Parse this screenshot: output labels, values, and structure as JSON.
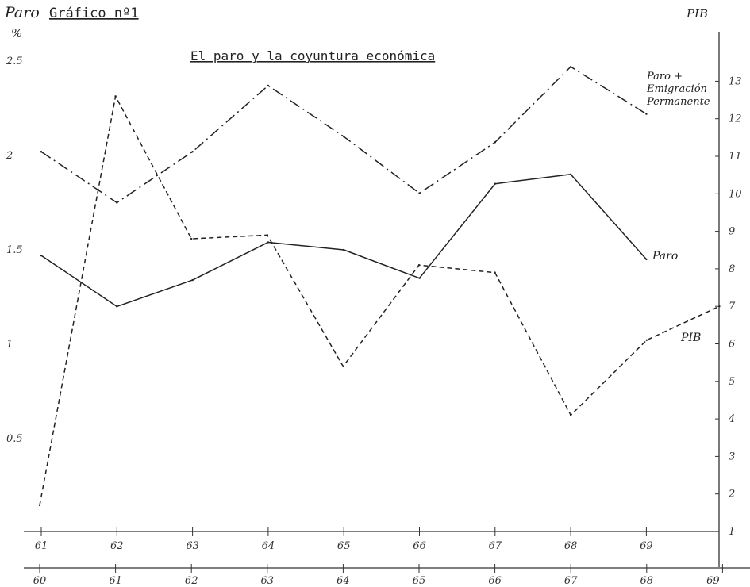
{
  "chart_data": {
    "type": "line",
    "title": "El paro y la coyuntura económica",
    "figure_label": "Gráfico nº1",
    "ylabel_left": "Paro",
    "ylabel_left_unit": "%",
    "ylabel_right": "PIB",
    "x_top_labels": [
      "61",
      "62",
      "63",
      "64",
      "65",
      "66",
      "67",
      "68",
      "69"
    ],
    "x_bottom_labels": [
      "60",
      "61",
      "62",
      "63",
      "64",
      "65",
      "66",
      "67",
      "68",
      "69"
    ],
    "left_ticks": [
      "2.5",
      "2",
      "1.5",
      "1",
      "0.5"
    ],
    "right_ticks": [
      "13",
      "12",
      "11",
      "10",
      "9",
      "8",
      "7",
      "6",
      "5",
      "4",
      "3",
      "2",
      "1"
    ],
    "ylim_left": [
      0,
      2.6
    ],
    "ylim_right": [
      1,
      13.8
    ],
    "series": [
      {
        "name": "Paro",
        "axis": "left",
        "style": "solid",
        "x": [
          "61",
          "62",
          "63",
          "64",
          "65",
          "66",
          "67",
          "68",
          "69"
        ],
        "values": [
          1.47,
          1.2,
          1.34,
          1.54,
          1.5,
          1.35,
          1.85,
          1.9,
          1.45
        ]
      },
      {
        "name": "Paro + Emigración Permanente",
        "name_lines": [
          "Paro +",
          "Emigración",
          "Permanente"
        ],
        "axis": "left",
        "style": "dashdot",
        "x": [
          "61",
          "62",
          "63",
          "64",
          "65",
          "66",
          "67",
          "68",
          "69"
        ],
        "values": [
          2.02,
          1.75,
          2.02,
          2.37,
          2.1,
          1.8,
          2.07,
          2.47,
          2.22
        ]
      },
      {
        "name": "PIB",
        "axis": "right",
        "style": "dashed",
        "x": [
          "60",
          "61",
          "62",
          "63",
          "64",
          "65",
          "66",
          "67",
          "68",
          "69"
        ],
        "values": [
          1.7,
          12.6,
          8.8,
          8.9,
          5.4,
          8.1,
          7.9,
          4.1,
          6.1,
          7.0
        ]
      }
    ]
  }
}
